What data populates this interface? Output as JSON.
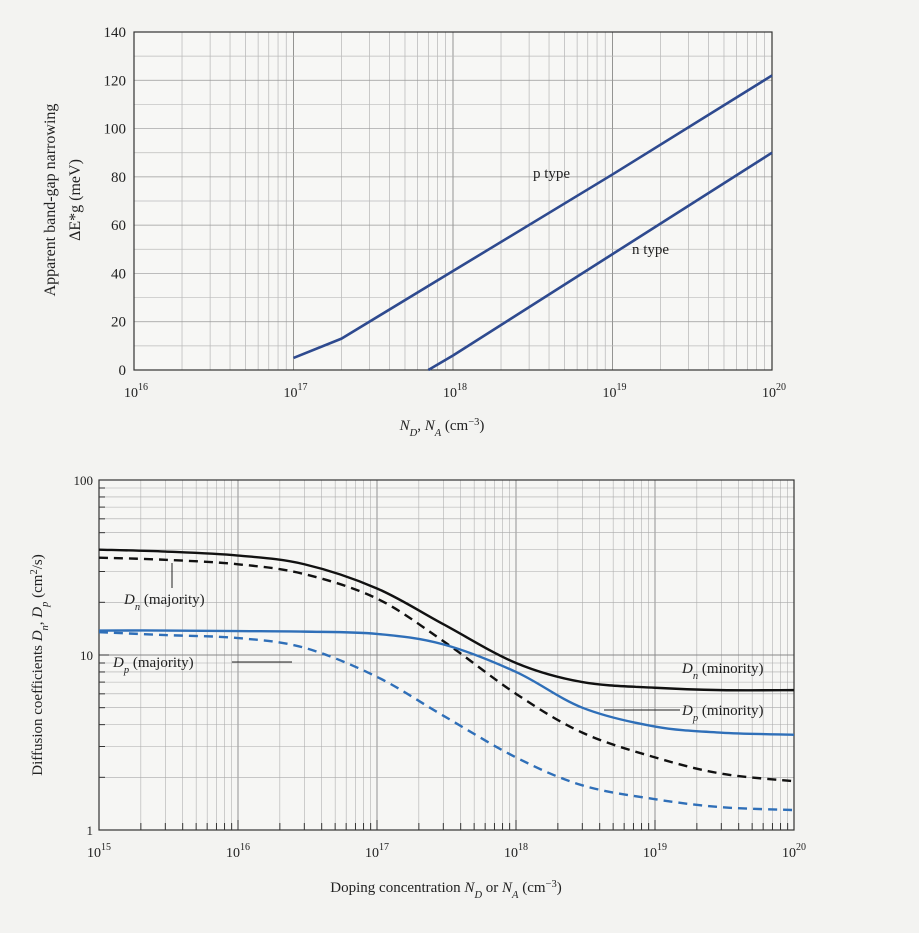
{
  "chart_data": [
    {
      "type": "line",
      "xscale": "log",
      "xlim": [
        1e+16,
        1e+20
      ],
      "ylim": [
        0,
        140
      ],
      "grid": true,
      "xlabel": [
        {
          "t": "N",
          "i": true
        },
        {
          "t": "D",
          "sub": true,
          "i": true
        },
        {
          "t": ", "
        },
        {
          "t": "N",
          "i": true
        },
        {
          "t": "A",
          "sub": true,
          "i": true
        },
        {
          "t": " (cm"
        },
        {
          "t": "−3",
          "sup": true
        },
        {
          "t": ")"
        }
      ],
      "ylabel": [
        "Apparent band-gap narrowing",
        "ΔE*g (meV)"
      ],
      "xticks": [
        {
          "base": "10",
          "exp": "16",
          "v": 1e+16
        },
        {
          "base": "10",
          "exp": "17",
          "v": 1e+17
        },
        {
          "base": "10",
          "exp": "18",
          "v": 1e+18
        },
        {
          "base": "10",
          "exp": "19",
          "v": 1e+19
        },
        {
          "base": "10",
          "exp": "20",
          "v": 1e+20
        }
      ],
      "yticks": [
        "0",
        "20",
        "40",
        "60",
        "80",
        "100",
        "120",
        "140"
      ],
      "line_color": "#2e4a8f",
      "series": [
        {
          "name": "p type",
          "x": [
            1e+17,
            2e+17,
            1e+18,
            1e+19,
            1e+20
          ],
          "y": [
            5,
            13,
            41,
            81,
            122
          ]
        },
        {
          "name": "n type",
          "x": [
            7e+17,
            1e+18,
            1e+19,
            1e+20
          ],
          "y": [
            0,
            6,
            48,
            90
          ]
        }
      ]
    },
    {
      "type": "line",
      "xscale": "log",
      "yscale": "log",
      "xlim": [
        1000000000000000.0,
        1e+20
      ],
      "ylim": [
        1,
        100
      ],
      "grid": true,
      "xlabel": [
        {
          "t": "Doping concentration "
        },
        {
          "t": "N",
          "i": true
        },
        {
          "t": "D",
          "sub": true,
          "i": true
        },
        {
          "t": " or "
        },
        {
          "t": "N",
          "i": true
        },
        {
          "t": "A",
          "sub": true,
          "i": true
        },
        {
          "t": " (cm"
        },
        {
          "t": "−3",
          "sup": true
        },
        {
          "t": ")"
        }
      ],
      "ylabel": [
        {
          "t": "Diffusion coefficients "
        },
        {
          "t": "D",
          "i": true
        },
        {
          "t": "n",
          "sub": true,
          "i": true
        },
        {
          "t": ", "
        },
        {
          "t": "D",
          "i": true
        },
        {
          "t": "p",
          "sub": true,
          "i": true
        },
        {
          "t": " (cm"
        },
        {
          "t": "2",
          "sup": true
        },
        {
          "t": "/s)"
        }
      ],
      "xticks": [
        {
          "base": "10",
          "exp": "15",
          "v": 1000000000000000.0
        },
        {
          "base": "10",
          "exp": "16",
          "v": 1e+16
        },
        {
          "base": "10",
          "exp": "17",
          "v": 1e+17
        },
        {
          "base": "10",
          "exp": "18",
          "v": 1e+18
        },
        {
          "base": "10",
          "exp": "19",
          "v": 1e+19
        },
        {
          "base": "10",
          "exp": "20",
          "v": 1e+20
        }
      ],
      "yticks": [
        {
          "label": "1",
          "v": 1
        },
        {
          "label": "10",
          "v": 10
        },
        {
          "label": "100",
          "v": 100
        }
      ],
      "x": [
        1000000000000000.0,
        3000000000000000.0,
        1e+16,
        3e+16,
        1e+17,
        3e+17,
        1e+18,
        3e+18,
        1e+19,
        3e+19,
        1e+20
      ],
      "series": [
        {
          "name": "Dn (minority)",
          "label": [
            {
              "t": "D",
              "i": true
            },
            {
              "t": "n",
              "sub": true,
              "i": true
            },
            {
              "t": " (minority)"
            }
          ],
          "color": "#111111",
          "dash": false,
          "values": [
            40,
            39,
            37,
            33,
            24,
            15,
            9,
            7,
            6.5,
            6.3,
            6.3
          ]
        },
        {
          "name": "Dn (majority)",
          "label": [
            {
              "t": "D",
              "i": true
            },
            {
              "t": "n",
              "sub": true,
              "i": true
            },
            {
              "t": " (majority)"
            }
          ],
          "color": "#111111",
          "dash": true,
          "values": [
            36,
            35,
            33,
            29,
            21,
            12,
            6,
            3.6,
            2.6,
            2.1,
            1.9
          ]
        },
        {
          "name": "Dp (minority)",
          "label": [
            {
              "t": "D",
              "i": true
            },
            {
              "t": "p",
              "sub": true,
              "i": true
            },
            {
              "t": " (minority)"
            }
          ],
          "color": "#2f6fb8",
          "dash": false,
          "values": [
            13.8,
            13.8,
            13.7,
            13.6,
            13.2,
            11.5,
            8,
            5,
            3.9,
            3.6,
            3.5
          ]
        },
        {
          "name": "Dp (majority)",
          "label": [
            {
              "t": "D",
              "i": true
            },
            {
              "t": "p",
              "sub": true,
              "i": true
            },
            {
              "t": " (majority)"
            }
          ],
          "color": "#2f6fb8",
          "dash": true,
          "values": [
            13.5,
            13,
            12.5,
            11,
            7.5,
            4.5,
            2.6,
            1.8,
            1.5,
            1.35,
            1.3
          ]
        }
      ]
    }
  ]
}
